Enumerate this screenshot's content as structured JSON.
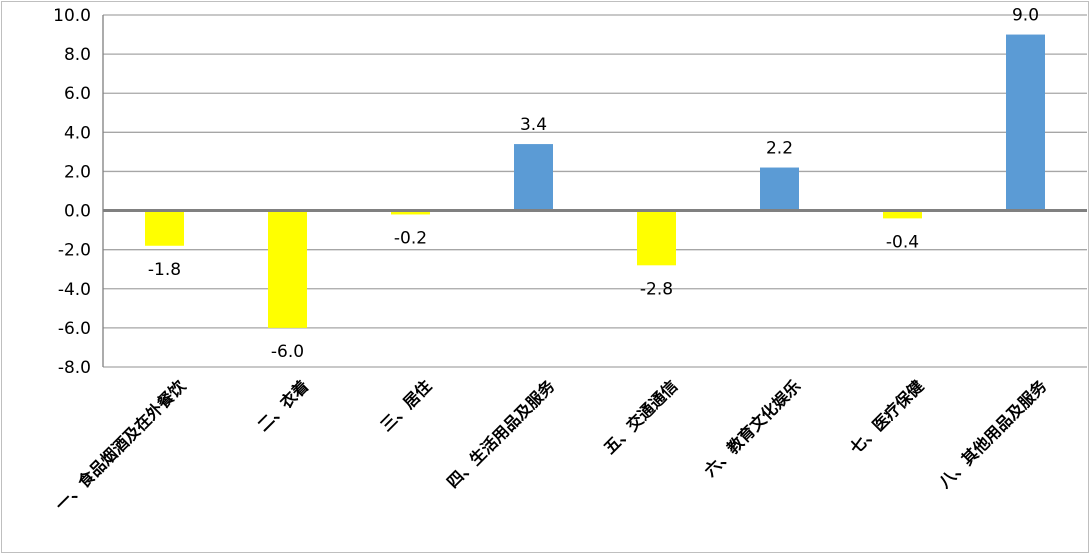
{
  "chart_data": {
    "type": "bar",
    "categories": [
      "一、食品烟酒及在外餐饮",
      "二、衣着",
      "三、居住",
      "四、生活用品及服务",
      "五、交通通信",
      "六、教育文化娱乐",
      "七、医疗保健",
      "八、其他用品及服务"
    ],
    "values": [
      -1.8,
      -6.0,
      -0.2,
      3.4,
      -2.8,
      2.2,
      -0.4,
      9.0
    ],
    "value_labels": [
      "-1.8",
      "-6.0",
      "-0.2",
      "3.4",
      "-2.8",
      "2.2",
      "-0.4",
      "9.0"
    ],
    "ylim": [
      -8.0,
      10.0
    ],
    "yticks": [
      "10.0",
      "8.0",
      "6.0",
      "4.0",
      "2.0",
      "0.0",
      "-2.0",
      "-4.0",
      "-6.0",
      "-8.0"
    ],
    "ytick_values": [
      10,
      8,
      6,
      4,
      2,
      0,
      -2,
      -4,
      -6,
      -8
    ],
    "grid": true,
    "legend": "none",
    "colors": {
      "positive": "#5b9bd5",
      "negative": "#ffff00",
      "axis": "#808080",
      "grid": "#a6a6a6"
    }
  }
}
